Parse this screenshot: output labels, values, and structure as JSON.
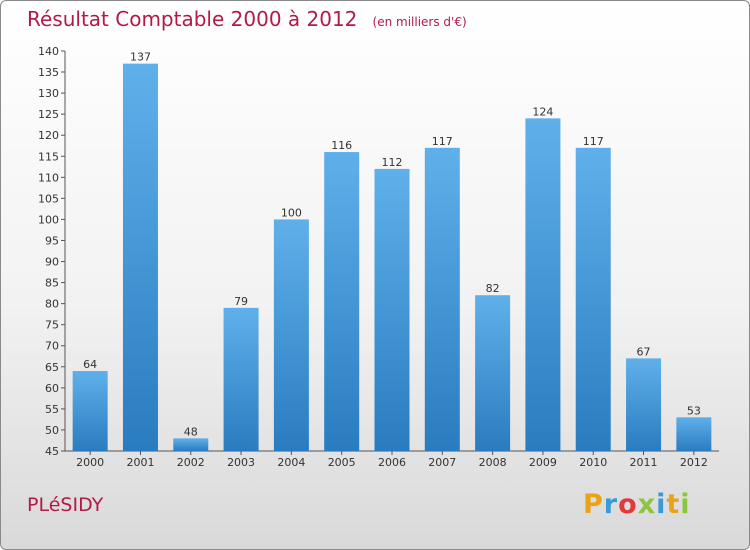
{
  "header": {
    "title": "Résultat Comptable 2000 à 2012",
    "subtitle": "(en milliers d'€)"
  },
  "footer": {
    "commune": "PLéSIDY",
    "brand_letters": [
      "P",
      "r",
      "o",
      "x",
      "i",
      "t",
      "i"
    ],
    "brand_colors": [
      "#e8a317",
      "#3a9ad9",
      "#e23a3a",
      "#8cc63f",
      "#3a9ad9",
      "#e8a317",
      "#8cc63f"
    ]
  },
  "chart_data": {
    "type": "bar",
    "title": "Résultat Comptable 2000 à 2012",
    "subtitle": "(en milliers d'€)",
    "categories": [
      "2000",
      "2001",
      "2002",
      "2003",
      "2004",
      "2005",
      "2006",
      "2007",
      "2008",
      "2009",
      "2010",
      "2011",
      "2012"
    ],
    "values": [
      64,
      137,
      48,
      79,
      100,
      116,
      112,
      117,
      82,
      124,
      117,
      67,
      53
    ],
    "ylim": [
      45,
      140
    ],
    "ytick_step": 5,
    "grid": false,
    "bar_color_top": "#5fb0ea",
    "bar_color_bottom": "#2a7cc0"
  }
}
